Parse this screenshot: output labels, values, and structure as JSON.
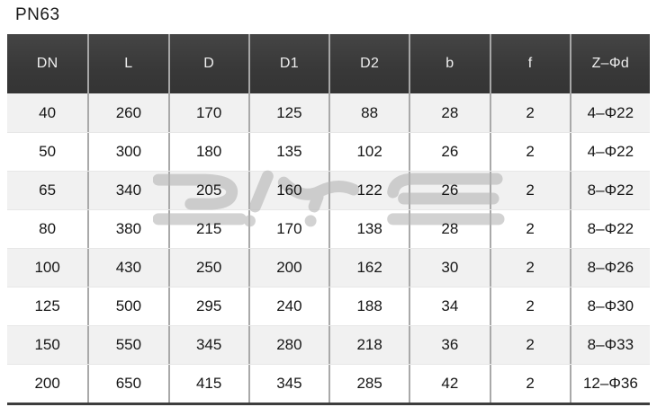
{
  "page": {
    "title": "PN63"
  },
  "watermark": {
    "text": "DIYE",
    "color": "#b5b5b5"
  },
  "table": {
    "columns": [
      "DN",
      "L",
      "D",
      "D1",
      "D2",
      "b",
      "f",
      "Z–Φd"
    ],
    "rows": [
      [
        "40",
        "260",
        "170",
        "125",
        "88",
        "28",
        "2",
        "4–Φ22"
      ],
      [
        "50",
        "300",
        "180",
        "135",
        "102",
        "26",
        "2",
        "4–Φ22"
      ],
      [
        "65",
        "340",
        "205",
        "160",
        "122",
        "26",
        "2",
        "8–Φ22"
      ],
      [
        "80",
        "380",
        "215",
        "170",
        "138",
        "28",
        "2",
        "8–Φ22"
      ],
      [
        "100",
        "430",
        "250",
        "200",
        "162",
        "30",
        "2",
        "8–Φ26"
      ],
      [
        "125",
        "500",
        "295",
        "240",
        "188",
        "34",
        "2",
        "8–Φ30"
      ],
      [
        "150",
        "550",
        "345",
        "280",
        "218",
        "36",
        "2",
        "8–Φ33"
      ],
      [
        "200",
        "650",
        "415",
        "345",
        "285",
        "42",
        "2",
        "12–Φ36"
      ]
    ],
    "colors": {
      "header_bg": "#3b3b3b",
      "header_text": "#efefef",
      "row_stripe": "#f1f1f1",
      "row_white": "#ffffff",
      "body_text": "#161616"
    }
  }
}
